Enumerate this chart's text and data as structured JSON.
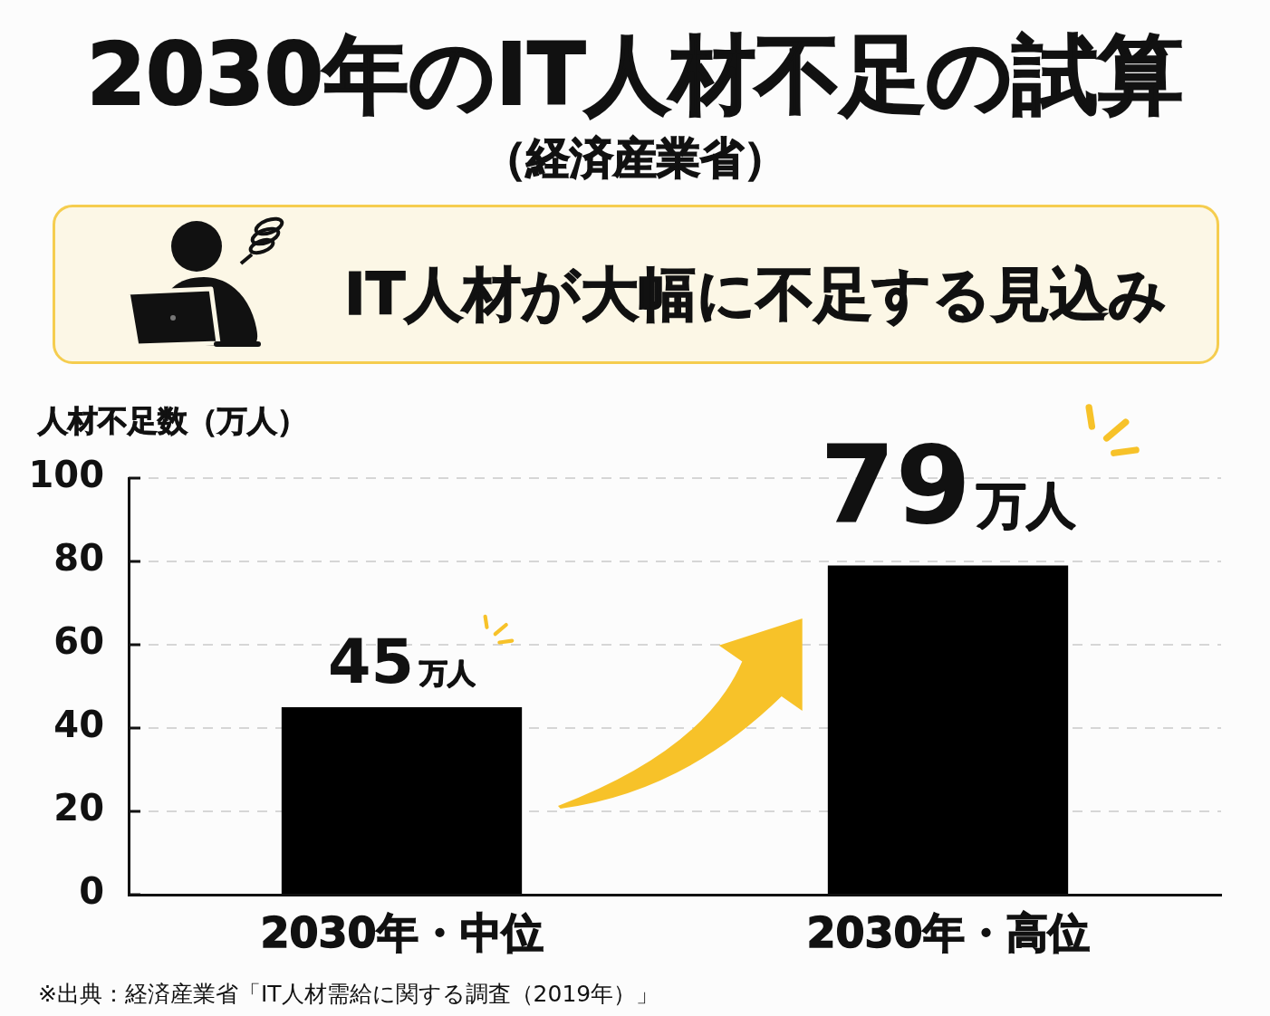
{
  "chart_data": {
    "type": "bar",
    "title": "2030年のIT人材不足の試算",
    "subtitle": "（経済産業省）",
    "ylabel": "人材不足数（万人）",
    "categories": [
      "2030年・中位",
      "2030年・高位"
    ],
    "values": [
      45,
      79
    ],
    "color": "#000000",
    "value_labels": [
      "45万人",
      "79万人"
    ],
    "ylim": [
      0,
      100
    ],
    "yticks": [
      0,
      20,
      40,
      60,
      80,
      100
    ],
    "grid": "y",
    "annotations": [
      "IT人材が大幅に不足する見込み",
      "※出典：経済産業省「IT人材需給に関する調査（2019年）」"
    ]
  }
}
